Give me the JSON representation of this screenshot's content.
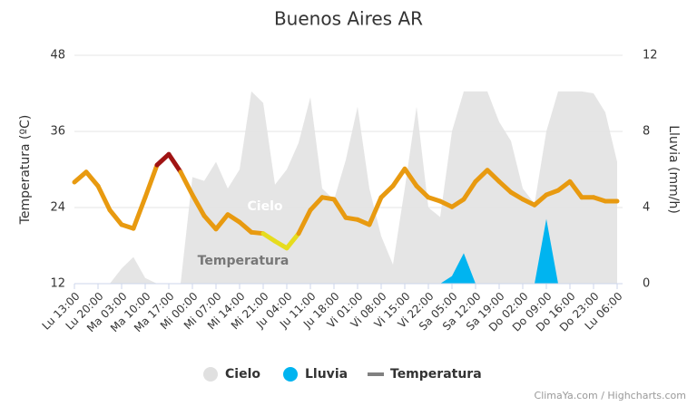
{
  "chart_data": {
    "type": "line",
    "title": "Buenos Aires AR",
    "y_label": "Temperatura (ºC)",
    "y2_label": "Lluvia (mm/h)",
    "categories": [
      "Lu 13:00",
      null,
      "Lu 20:00",
      null,
      "Ma 03:00",
      null,
      "Ma 10:00",
      null,
      "Ma 17:00",
      null,
      "Mi 00:00",
      null,
      "Mi 07:00",
      null,
      "Mi 14:00",
      null,
      "Mi 21:00",
      null,
      "Ju 04:00",
      null,
      "Ju 11:00",
      null,
      "Ju 18:00",
      null,
      "Vi 01:00",
      null,
      "Vi 08:00",
      null,
      "Vi 15:00",
      null,
      "Vi 22:00",
      null,
      "Sa 05:00",
      null,
      "Sa 12:00",
      null,
      "Sa 19:00",
      null,
      "Do 02:00",
      null,
      "Do 09:00",
      null,
      "Do 16:00",
      null,
      "Do 23:00",
      null,
      "Lu 06:00"
    ],
    "ylim": [
      12,
      48
    ],
    "yticks": [
      12,
      24,
      36,
      48
    ],
    "y2lim": [
      0,
      12
    ],
    "y2ticks": [
      0,
      4,
      8,
      12
    ],
    "grid": true,
    "series": [
      {
        "name": "Cielo",
        "kind": "area",
        "color": "#e0e0e0",
        "axis": "y2",
        "values": [
          0,
          0,
          0,
          0,
          0.8,
          1.4,
          0.3,
          0,
          0,
          0,
          5.6,
          5.4,
          6.4,
          5,
          6,
          10.1,
          9.5,
          5.2,
          6,
          7.4,
          9.8,
          5,
          4.4,
          6.5,
          9.3,
          5,
          2.5,
          1,
          5,
          9.3,
          4,
          3.5,
          8,
          10.1,
          10.1,
          10.1,
          8.5,
          7.5,
          5,
          4.2,
          8,
          10.1,
          10.1,
          10.1,
          10,
          9,
          6.4
        ]
      },
      {
        "name": "Lluvia",
        "kind": "area",
        "color": "#00b4f0",
        "axis": "y2",
        "values": [
          0,
          0,
          0,
          0,
          0,
          0,
          0,
          0,
          0,
          0,
          0,
          0,
          0,
          0,
          0,
          0,
          0,
          0,
          0,
          0,
          0,
          0,
          0,
          0,
          0,
          0,
          0,
          0,
          0,
          0,
          0,
          0,
          0.4,
          1.6,
          0,
          0,
          0,
          0,
          0,
          0,
          3.4,
          0,
          0,
          0,
          0,
          0,
          0
        ]
      },
      {
        "name": "Temperatura",
        "kind": "line",
        "color": "#808080",
        "zones": [
          {
            "value": 20,
            "color": "#e6dc1e"
          },
          {
            "value": 30,
            "color": "#e89a10"
          },
          {
            "color": "#a01414"
          }
        ],
        "values": [
          28,
          29.6,
          27.4,
          23.6,
          21.3,
          20.7,
          25.6,
          30.7,
          32.4,
          29.6,
          26,
          22.7,
          20.6,
          22.9,
          21.7,
          20.1,
          19.9,
          18.7,
          17.6,
          19.9,
          23.6,
          25.6,
          25.3,
          22.4,
          22.1,
          21.3,
          25.6,
          27.4,
          30.1,
          27.4,
          25.6,
          25,
          24.1,
          25.3,
          28.1,
          29.9,
          28.1,
          26.4,
          25.3,
          24.4,
          26,
          26.7,
          28.1,
          25.6,
          25.6,
          25,
          25
        ]
      }
    ],
    "annotations": [
      {
        "text": "Cielo",
        "series": 0
      },
      {
        "text": "Temperatura",
        "series": 2
      }
    ],
    "credits": "ClimaYa.com / Highcharts.com"
  }
}
